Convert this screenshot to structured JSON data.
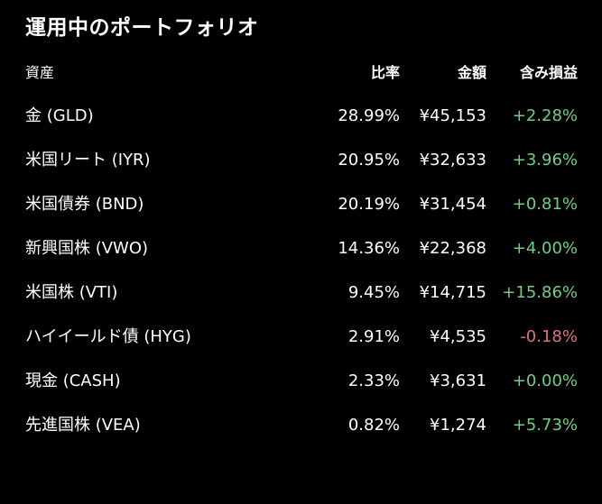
{
  "title": "運用中のポートフォリオ",
  "headers": {
    "asset": "資産",
    "ratio": "比率",
    "amount": "金額",
    "gain": "含み損益"
  },
  "rows": [
    {
      "asset": "金 (GLD)",
      "ratio": "28.99%",
      "amount": "¥45,153",
      "gain": "+2.28%",
      "trend": "positive"
    },
    {
      "asset": "米国リート (IYR)",
      "ratio": "20.95%",
      "amount": "¥32,633",
      "gain": "+3.96%",
      "trend": "positive"
    },
    {
      "asset": "米国債券 (BND)",
      "ratio": "20.19%",
      "amount": "¥31,454",
      "gain": "+0.81%",
      "trend": "positive"
    },
    {
      "asset": "新興国株 (VWO)",
      "ratio": "14.36%",
      "amount": "¥22,368",
      "gain": "+4.00%",
      "trend": "positive"
    },
    {
      "asset": "米国株 (VTI)",
      "ratio": "9.45%",
      "amount": "¥14,715",
      "gain": "+15.86%",
      "trend": "positive"
    },
    {
      "asset": "ハイイールド債 (HYG)",
      "ratio": "2.91%",
      "amount": "¥4,535",
      "gain": "-0.18%",
      "trend": "negative"
    },
    {
      "asset": "現金 (CASH)",
      "ratio": "2.33%",
      "amount": "¥3,631",
      "gain": "+0.00%",
      "trend": "neutral"
    },
    {
      "asset": "先進国株 (VEA)",
      "ratio": "0.82%",
      "amount": "¥1,274",
      "gain": "+5.73%",
      "trend": "positive"
    }
  ],
  "colors": {
    "background": "#000000",
    "text": "#ffffff",
    "positive": "#6fcf83",
    "negative": "#e0707a"
  }
}
